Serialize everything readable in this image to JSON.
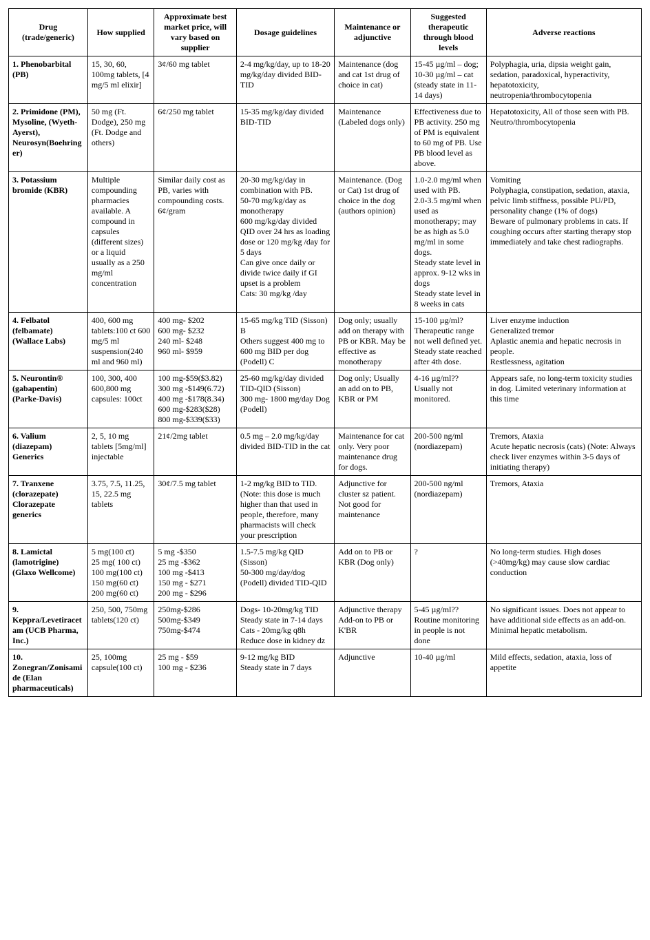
{
  "table": {
    "columns": [
      "Drug (trade/generic)",
      "How supplied",
      "Approximate best market price, will vary based on supplier",
      "Dosage guidelines",
      "Maintenance or adjunctive",
      "Suggested therapeutic through blood levels",
      "Adverse reactions"
    ],
    "rows": [
      {
        "drug": "1. Phenobarbital (PB)",
        "supplied": "15, 30, 60, 100mg tablets, [4 mg/5 ml elixir]",
        "price": "3¢/60 mg tablet",
        "dosage": "2-4 mg/kg/day, up to 18-20 mg/kg/day divided BID-TID",
        "maintenance": "Maintenance (dog and cat 1st drug of choice in cat)",
        "blood": "15-45 µg/ml – dog; 10-30 µg/ml – cat (steady state in 11-14 days)",
        "adverse": "Polyphagia, uria, dipsia weight gain, sedation, paradoxical, hyperactivity, hepatotoxicity, neutropenia/thrombocytopenia"
      },
      {
        "drug": "2. Primidone (PM), Mysoline, (Wyeth-Ayerst), Neurosyn(Boehringer)",
        "supplied": "50 mg (Ft. Dodge), 250 mg (Ft. Dodge and others)",
        "price": "6¢/250 mg tablet",
        "dosage": "15-35 mg/kg/day divided BID-TID",
        "maintenance": "Maintenance (Labeled dogs only)",
        "blood": "Effectiveness due to PB activity. 250 mg of PM is equivalent to 60 mg of PB. Use PB blood level as above.",
        "adverse": "Hepatotoxicity, All of those seen with PB. Neutro/thrombocytopenia"
      },
      {
        "drug": "3. Potassium bromide (KBR)",
        "supplied": "Multiple compounding pharmacies available. A compound in capsules (different sizes) or a liquid usually as a 250 mg/ml concentration",
        "price": "Similar daily cost as PB, varies with compounding costs. 6¢/gram",
        "dosage": "20-30 mg/kg/day in combination with PB.\n50-70 mg/kg/day as monotherapy\n600 mg/kg/day divided QID over 24 hrs as loading dose or 120 mg/kg /day for 5 days\nCan give once daily or divide twice daily if GI upset is a problem\nCats: 30 mg/kg /day",
        "maintenance": "Maintenance. (Dog or Cat) 1st drug of choice in the dog (authors opinion)",
        "blood": "1.0-2.0 mg/ml when used with PB.\n2.0-3.5 mg/ml when used as monotherapy; may be as high as 5.0 mg/ml in some dogs.\nSteady state level in approx. 9-12 wks in dogs\nSteady state level in 8 weeks in cats",
        "adverse": "Vomiting\nPolyphagia, constipation, sedation, ataxia, pelvic limb stiffness, possible PU/PD, personality change (1% of dogs)\nBeware of pulmonary problems in cats. If coughing occurs after starting therapy stop immediately and take chest radiographs."
      },
      {
        "drug": "4. Felbatol (felbamate) (Wallace Labs)",
        "supplied": "400, 600 mg tablets:100 ct 600 mg/5 ml suspension(240 ml and 960 ml)",
        "price": "400 mg- $202\n600 mg- $232\n240 ml- $248\n960 ml- $959",
        "dosage": "15-65 mg/kg TID (Sisson) B\n Others suggest 400 mg to 600 mg BID per dog (Podell) C",
        "maintenance": "Dog only; usually add on therapy with PB or KBR. May be effective as monotherapy",
        "blood": "15-100 µg/ml? Therapeutic range not well defined yet. Steady state reached after 4th dose.",
        "adverse": "Liver enzyme induction\nGeneralized tremor\nAplastic anemia and hepatic necrosis in people.\nRestlessness, agitation"
      },
      {
        "drug": "5. Neurontin® (gabapentin) (Parke-Davis)",
        "supplied": "100, 300, 400 600,800 mg capsules: 100ct",
        "price": "100 mg-$59($3.82)\n300 mg -$149(6.72)\n400 mg -$178(8.34)\n600 mg-$283($28)\n800 mg-$339($33)",
        "dosage": "25-60 mg/kg/day divided TID-QID (Sisson)\n300 mg- 1800 mg/day Dog (Podell)",
        "maintenance": "Dog only; Usually an add on to PB, KBR or PM",
        "blood": "4-16 µg/ml?? Usually not monitored.",
        "adverse": "Appears safe, no long-term toxicity studies in dog. Limited veterinary information at this time"
      },
      {
        "drug": "6. Valium (diazepam) Generics",
        "supplied": "2, 5, 10 mg tablets [5mg/ml] injectable",
        "price": "21¢/2mg tablet",
        "dosage": "0.5 mg – 2.0 mg/kg/day divided BID-TID in the cat",
        "maintenance": "Maintenance for cat only. Very poor maintenance drug for dogs.",
        "blood": "200-500 ng/ml (nordiazepam)",
        "adverse": "Tremors, Ataxia\nAcute hepatic necrosis (cats) (Note: Always check liver enzymes within 3-5 days of initiating therapy)"
      },
      {
        "drug": "7. Tranxene (clorazepate) Clorazepate generics",
        "supplied": "3.75, 7.5, 11.25, 15, 22.5 mg tablets",
        "price": "30¢/7.5 mg tablet",
        "dosage": "1-2 mg/kg BID to TID. (Note: this dose is much higher than that used in people, therefore, many pharmacists will check your prescription",
        "maintenance": "Adjunctive for cluster sz patient. Not good for maintenance",
        "blood": "200-500 ng/ml (nordiazepam)",
        "adverse": "Tremors, Ataxia"
      },
      {
        "drug": "8. Lamictal (lamotrigine) (Glaxo Wellcome)",
        "supplied": "5 mg(100 ct)\n25 mg( 100 ct)\n100 mg(100 ct)\n150 mg(60 ct)\n200 mg(60 ct)",
        "price": "5 mg -$350\n25 mg -$362\n100 mg -$413\n150 mg - $271\n200 mg - $296",
        "dosage": "1.5-7.5 mg/kg QID (Sisson)\n50-300 mg/day/dog (Podell) divided TID-QID",
        "maintenance": "Add on to PB or KBR (Dog only)",
        "blood": "?",
        "adverse": "No long-term studies. High doses (>40mg/kg) may cause slow cardiac conduction"
      },
      {
        "drug": "9. Keppra/Levetiracetam (UCB Pharma, Inc.)",
        "supplied": "250, 500, 750mg tablets(120 ct)",
        "price": "250mg-$286\n500mg-$349\n750mg-$474",
        "dosage": "Dogs- 10-20mg/kg TID\nSteady state in 7-14 days\nCats - 20mg/kg q8h\nReduce dose in kidney dz",
        "maintenance": "Adjunctive therapy\nAdd-on to PB or K'BR",
        "blood": "5-45 µg/ml?? Routine monitoring in people is not done",
        "adverse": "No significant issues. Does not appear to have additional side effects as an add-on. Minimal hepatic metabolism."
      },
      {
        "drug": "10. Zonegran/Zonisamide (Elan pharmaceuticals)",
        "supplied": "25, 100mg capsule(100 ct)",
        "price": "25 mg - $59\n100 mg - $236",
        "dosage": "9-12 mg/kg BID\nSteady state in 7 days",
        "maintenance": "Adjunctive",
        "blood": "10-40 µg/ml",
        "adverse": "Mild effects, sedation, ataxia, loss of appetite"
      }
    ]
  }
}
